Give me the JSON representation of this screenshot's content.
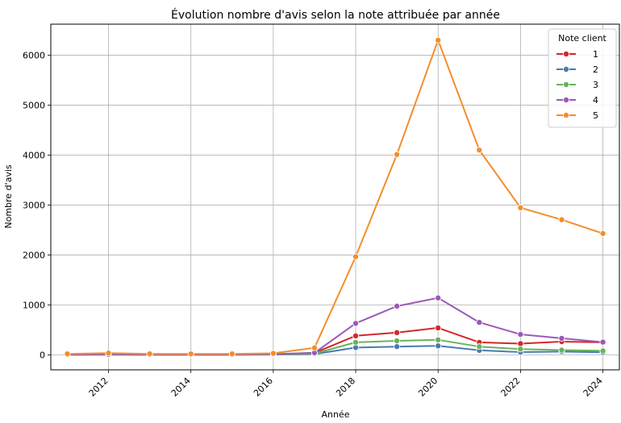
{
  "chart_data": {
    "type": "line",
    "title": "Évolution nombre d'avis selon la note attribuée par année",
    "xlabel": "Année",
    "ylabel": "Nombre d'avis",
    "xlim": [
      2010.6,
      2024.4
    ],
    "ylim": [
      -300,
      6620
    ],
    "x_ticks": [
      2012,
      2014,
      2016,
      2018,
      2020,
      2022,
      2024
    ],
    "y_ticks": [
      0,
      1000,
      2000,
      3000,
      4000,
      5000,
      6000
    ],
    "x_tick_labels": [
      "2012",
      "2014",
      "2016",
      "2018",
      "2020",
      "2022",
      "2024"
    ],
    "y_tick_labels": [
      "0",
      "1000",
      "2000",
      "3000",
      "4000",
      "5000",
      "6000"
    ],
    "grid": true,
    "legend": {
      "title": "Note client",
      "position": "top-right"
    },
    "x": [
      2011,
      2012,
      2013,
      2014,
      2015,
      2016,
      2017,
      2018,
      2019,
      2020,
      2021,
      2022,
      2023,
      2024
    ],
    "series": [
      {
        "name": "1",
        "color": "#d62728",
        "values": [
          5,
          10,
          5,
          5,
          5,
          10,
          40,
          380,
          445,
          540,
          250,
          225,
          265,
          250
        ]
      },
      {
        "name": "2",
        "color": "#4a7ab3",
        "values": [
          2,
          3,
          2,
          2,
          2,
          5,
          15,
          145,
          165,
          180,
          90,
          55,
          65,
          50
        ]
      },
      {
        "name": "3",
        "color": "#69b35c",
        "values": [
          3,
          5,
          3,
          3,
          3,
          8,
          25,
          250,
          280,
          300,
          165,
          115,
          95,
          80
        ]
      },
      {
        "name": "4",
        "color": "#9b59b6",
        "values": [
          5,
          10,
          5,
          5,
          5,
          15,
          40,
          630,
          975,
          1140,
          650,
          410,
          330,
          255
        ]
      },
      {
        "name": "5",
        "color": "#f28e2b",
        "values": [
          20,
          35,
          20,
          20,
          20,
          30,
          140,
          1965,
          4010,
          6300,
          4100,
          2945,
          2705,
          2430
        ]
      }
    ]
  }
}
